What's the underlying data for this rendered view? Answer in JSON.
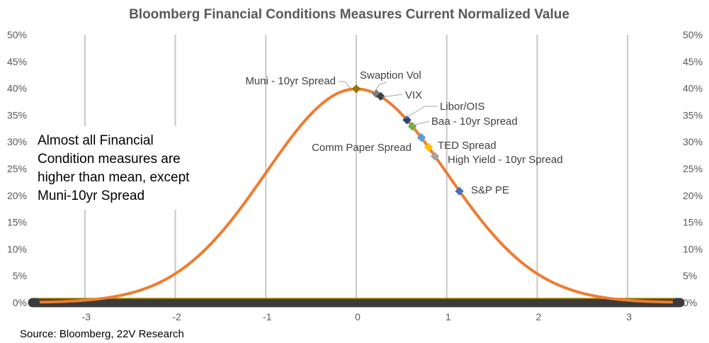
{
  "chart_data": {
    "type": "line",
    "title": "Bloomberg Financial  Conditions  Measures Current Normalized Value",
    "xlabel": "",
    "ylabel": "",
    "xlim": [
      -3.5,
      3.5
    ],
    "ylim": [
      0,
      50
    ],
    "x_ticks": [
      "-3",
      "-2",
      "-1",
      "0",
      "1",
      "2",
      "3"
    ],
    "x_tick_values": [
      -3,
      -2,
      -1,
      0,
      1,
      2,
      3
    ],
    "y_ticks": [
      "0%",
      "5%",
      "10%",
      "15%",
      "20%",
      "25%",
      "30%",
      "35%",
      "40%",
      "45%",
      "50%"
    ],
    "y_tick_values": [
      0,
      5,
      10,
      15,
      20,
      25,
      30,
      35,
      40,
      45,
      50
    ],
    "grid": "vertical",
    "curve": {
      "description_type": "standard-normal-density",
      "color": "#ED7D31"
    },
    "points": [
      {
        "label": "Muni - 10yr Spread",
        "x": 0.0,
        "y": 39.9,
        "color": "#997300"
      },
      {
        "label": "Swaption Vol",
        "x": 0.22,
        "y": 39.0,
        "color": "#7F7F7F"
      },
      {
        "label": "VIX",
        "x": 0.27,
        "y": 38.5,
        "color": "#404040"
      },
      {
        "label": "Libor/OIS",
        "x": 0.56,
        "y": 34.1,
        "color": "#264478"
      },
      {
        "label": "Baa - 10yr Spread",
        "x": 0.62,
        "y": 32.9,
        "color": "#70AD47"
      },
      {
        "label": "TED Spread",
        "x": 0.72,
        "y": 30.8,
        "color": "#5B9BD5"
      },
      {
        "label": "Comm Paper Spread",
        "x": 0.8,
        "y": 29.0,
        "color": "#FFC000"
      },
      {
        "label": "High Yield - 10yr Spread",
        "x": 0.87,
        "y": 27.3,
        "color": "#A5A5A5"
      },
      {
        "label": "S&P PE",
        "x": 1.14,
        "y": 20.8,
        "color": "#4472C4"
      }
    ],
    "baseline": {
      "y": 0,
      "color": "#3B3B3B"
    },
    "annotation": "Almost all Financial Condition measures are higher than mean, except Muni-10yr Spread"
  },
  "note_lines": [
    "Almost all Financial",
    "Condition measures are",
    "higher than mean, except",
    "Muni-10yr Spread"
  ],
  "source": "Source: Bloomberg, 22V Research"
}
